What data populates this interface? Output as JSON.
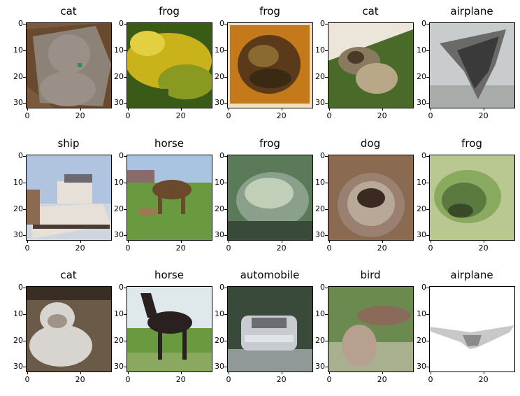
{
  "axis": {
    "y_ticks": [
      "0",
      "10",
      "20",
      "30"
    ],
    "x_ticks": [
      "0",
      "20"
    ]
  },
  "panels": [
    {
      "title": "cat",
      "colors": [
        "#7a5a3a",
        "#9a9088",
        "#8c8278",
        "#5a3a22"
      ]
    },
    {
      "title": "frog",
      "colors": [
        "#c9b21a",
        "#8a9a20",
        "#3a5a18",
        "#e2d040"
      ]
    },
    {
      "title": "frog",
      "colors": [
        "#c47a1a",
        "#5a3a18",
        "#8a6a30",
        "#f0e0c0"
      ]
    },
    {
      "title": "cat",
      "colors": [
        "#d8dcd6",
        "#8a7a60",
        "#4a6a2a",
        "#ece6da"
      ]
    },
    {
      "title": "airplane",
      "colors": [
        "#c8cccc",
        "#6a6a68",
        "#3a3a3a",
        "#a8aca8"
      ]
    },
    {
      "title": "ship",
      "colors": [
        "#b0c4e0",
        "#e6e0d8",
        "#8a6a50",
        "#4a3a30"
      ]
    },
    {
      "title": "horse",
      "colors": [
        "#a8c4e0",
        "#6a4a2a",
        "#6a9a40",
        "#9a7a50"
      ]
    },
    {
      "title": "frog",
      "colors": [
        "#8aa08a",
        "#5a7a5a",
        "#c0d0b8",
        "#3a4a3a"
      ]
    },
    {
      "title": "dog",
      "colors": [
        "#8a6a50",
        "#3a2a22",
        "#b8a898",
        "#9a8070"
      ]
    },
    {
      "title": "frog",
      "colors": [
        "#8aaa60",
        "#5a7a40",
        "#3a4a28",
        "#b8c890"
      ]
    },
    {
      "title": "cat",
      "colors": [
        "#6a5a48",
        "#d8d4d0",
        "#3a2e24",
        "#a09488"
      ]
    },
    {
      "title": "horse",
      "colors": [
        "#dfe8ea",
        "#2a2020",
        "#6a9a40",
        "#8aa860"
      ]
    },
    {
      "title": "automobile",
      "colors": [
        "#3a4a3a",
        "#c8ccd0",
        "#6a6e70",
        "#909898"
      ]
    },
    {
      "title": "bird",
      "colors": [
        "#6a8a50",
        "#8a6a58",
        "#b8a090",
        "#a8b090"
      ]
    },
    {
      "title": "airplane",
      "colors": [
        "#ffffff",
        "#8a8a8a",
        "#c8c8c8",
        "#f4f4f4"
      ]
    }
  ]
}
